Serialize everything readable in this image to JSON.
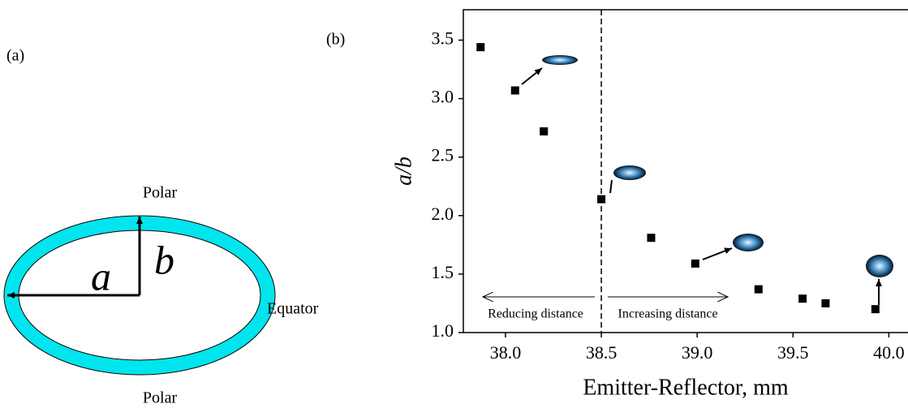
{
  "diagram": {
    "panel_label": "(a)",
    "top_label": "Polar",
    "bottom_label": "Polar",
    "side_label": "Equator",
    "semi_axis_a": "a",
    "semi_axis_b": "b"
  },
  "chart_data": {
    "type": "scatter",
    "panel_label": "(b)",
    "x_label": "Emitter-Reflector, mm",
    "y_label": "a/b",
    "x": [
      37.87,
      38.05,
      38.2,
      38.5,
      38.76,
      38.99,
      39.32,
      39.55,
      39.67,
      39.93
    ],
    "values": [
      3.44,
      3.07,
      2.72,
      2.14,
      1.81,
      1.59,
      1.37,
      1.29,
      1.25,
      1.2
    ],
    "color": "#000000",
    "xlim": [
      37.78,
      40.1
    ],
    "xticks": [
      {
        "value": 38,
        "label": "38.0"
      },
      38.5,
      {
        "value": 39,
        "label": "39.0"
      },
      39.5,
      {
        "value": 40,
        "label": "40.0"
      }
    ],
    "ylim": [
      1.0,
      3.76
    ],
    "yticks": [
      {
        "value": 1,
        "label": "1.0"
      },
      1.5,
      {
        "value": 2,
        "label": "2.0"
      },
      2.5,
      {
        "value": 3,
        "label": "3.0"
      },
      3.5
    ],
    "divider_x": 38.5,
    "left_annotation": "Reducing distance",
    "right_annotation": "Increasing distance"
  }
}
